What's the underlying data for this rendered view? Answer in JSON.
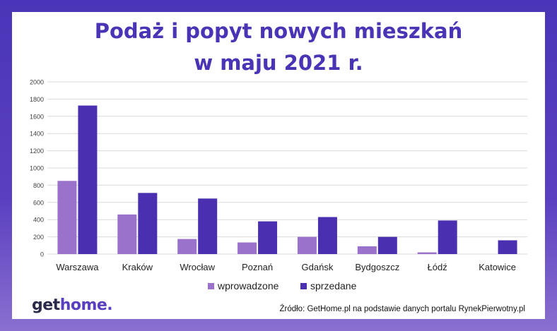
{
  "title_line1": "Podaż i popyt nowych mieszkań",
  "title_line2": "w maju 2021 r.",
  "logo": {
    "part1": "get",
    "part2": "home."
  },
  "source": "Źródło: GetHome.pl na podstawie danych portalu RynekPierwotny.pl",
  "colors": {
    "wprowadzone": "#9b72cb",
    "sprzedane": "#4a2fb0",
    "grid": "#d9d9d9"
  },
  "chart_data": {
    "type": "bar",
    "categories": [
      "Warszawa",
      "Kraków",
      "Wrocław",
      "Poznań",
      "Gdańsk",
      "Bydgoszcz",
      "Łódź",
      "Katowice"
    ],
    "series": [
      {
        "name": "wprowadzone",
        "values": [
          850,
          460,
          175,
          135,
          200,
          90,
          20,
          0
        ]
      },
      {
        "name": "sprzedane",
        "values": [
          1725,
          710,
          645,
          380,
          430,
          200,
          390,
          160
        ]
      }
    ],
    "ylim": [
      0,
      2000
    ],
    "yticks": [
      0,
      200,
      400,
      600,
      800,
      1000,
      1200,
      1400,
      1600,
      1800,
      2000
    ],
    "grid": true,
    "legend": "bottom"
  }
}
